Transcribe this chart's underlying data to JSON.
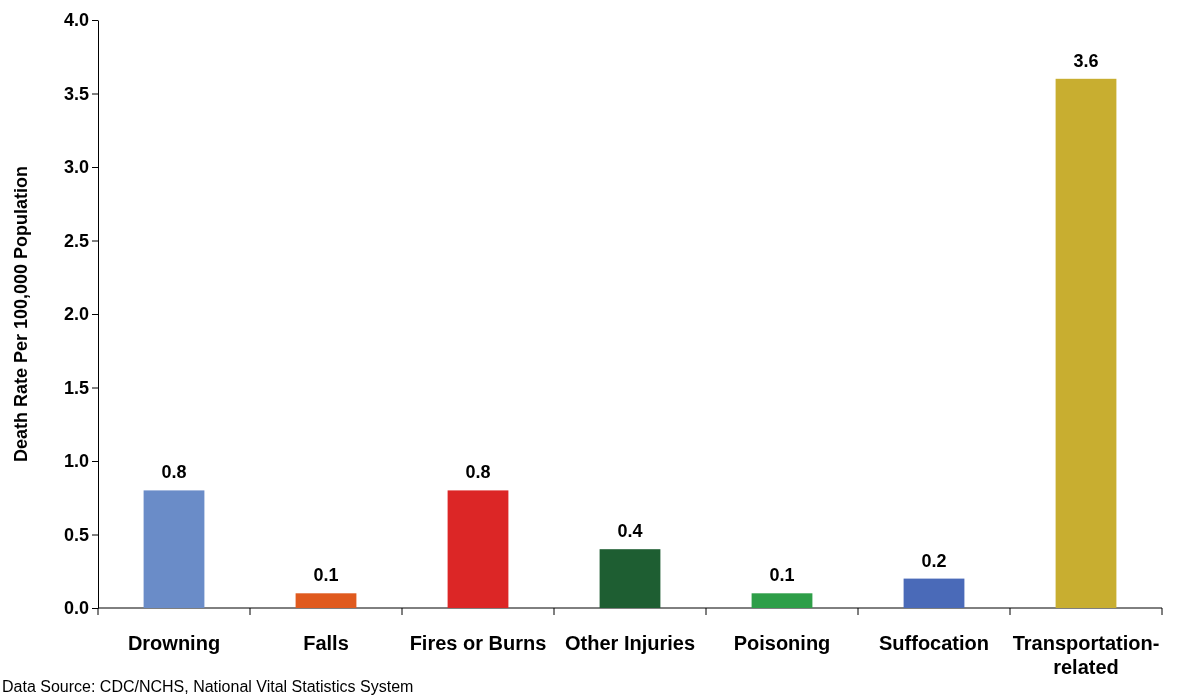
{
  "chart_data": {
    "type": "bar",
    "ylabel": "Death Rate Per 100,000 Population",
    "categories": [
      "Drowning",
      "Falls",
      "Fires or Burns",
      "Other Injuries",
      "Poisoning",
      "Suffocation",
      "Transportation-related"
    ],
    "values": [
      0.8,
      0.1,
      0.8,
      0.4,
      0.1,
      0.2,
      3.6
    ],
    "colors": [
      "#6a8cc8",
      "#e05a1e",
      "#dc2626",
      "#1e5e32",
      "#2e9e48",
      "#4a6ab8",
      "#c8ae30"
    ],
    "ylim": [
      0,
      4
    ],
    "yticks": [
      {
        "value": 0,
        "label": "0.0"
      },
      {
        "value": 0.5,
        "label": "0.5"
      },
      {
        "value": 1,
        "label": "1.0"
      },
      {
        "value": 1.5,
        "label": "1.5"
      },
      {
        "value": 2,
        "label": "2.0"
      },
      {
        "value": 2.5,
        "label": "2.5"
      },
      {
        "value": 3,
        "label": "3.0"
      },
      {
        "value": 3.5,
        "label": "3.5"
      },
      {
        "value": 4,
        "label": "4.0"
      }
    ],
    "data_labels": true,
    "grid": false,
    "annotations": [
      "Data Source: CDC/NCHS, National Vital Statistics System"
    ]
  }
}
